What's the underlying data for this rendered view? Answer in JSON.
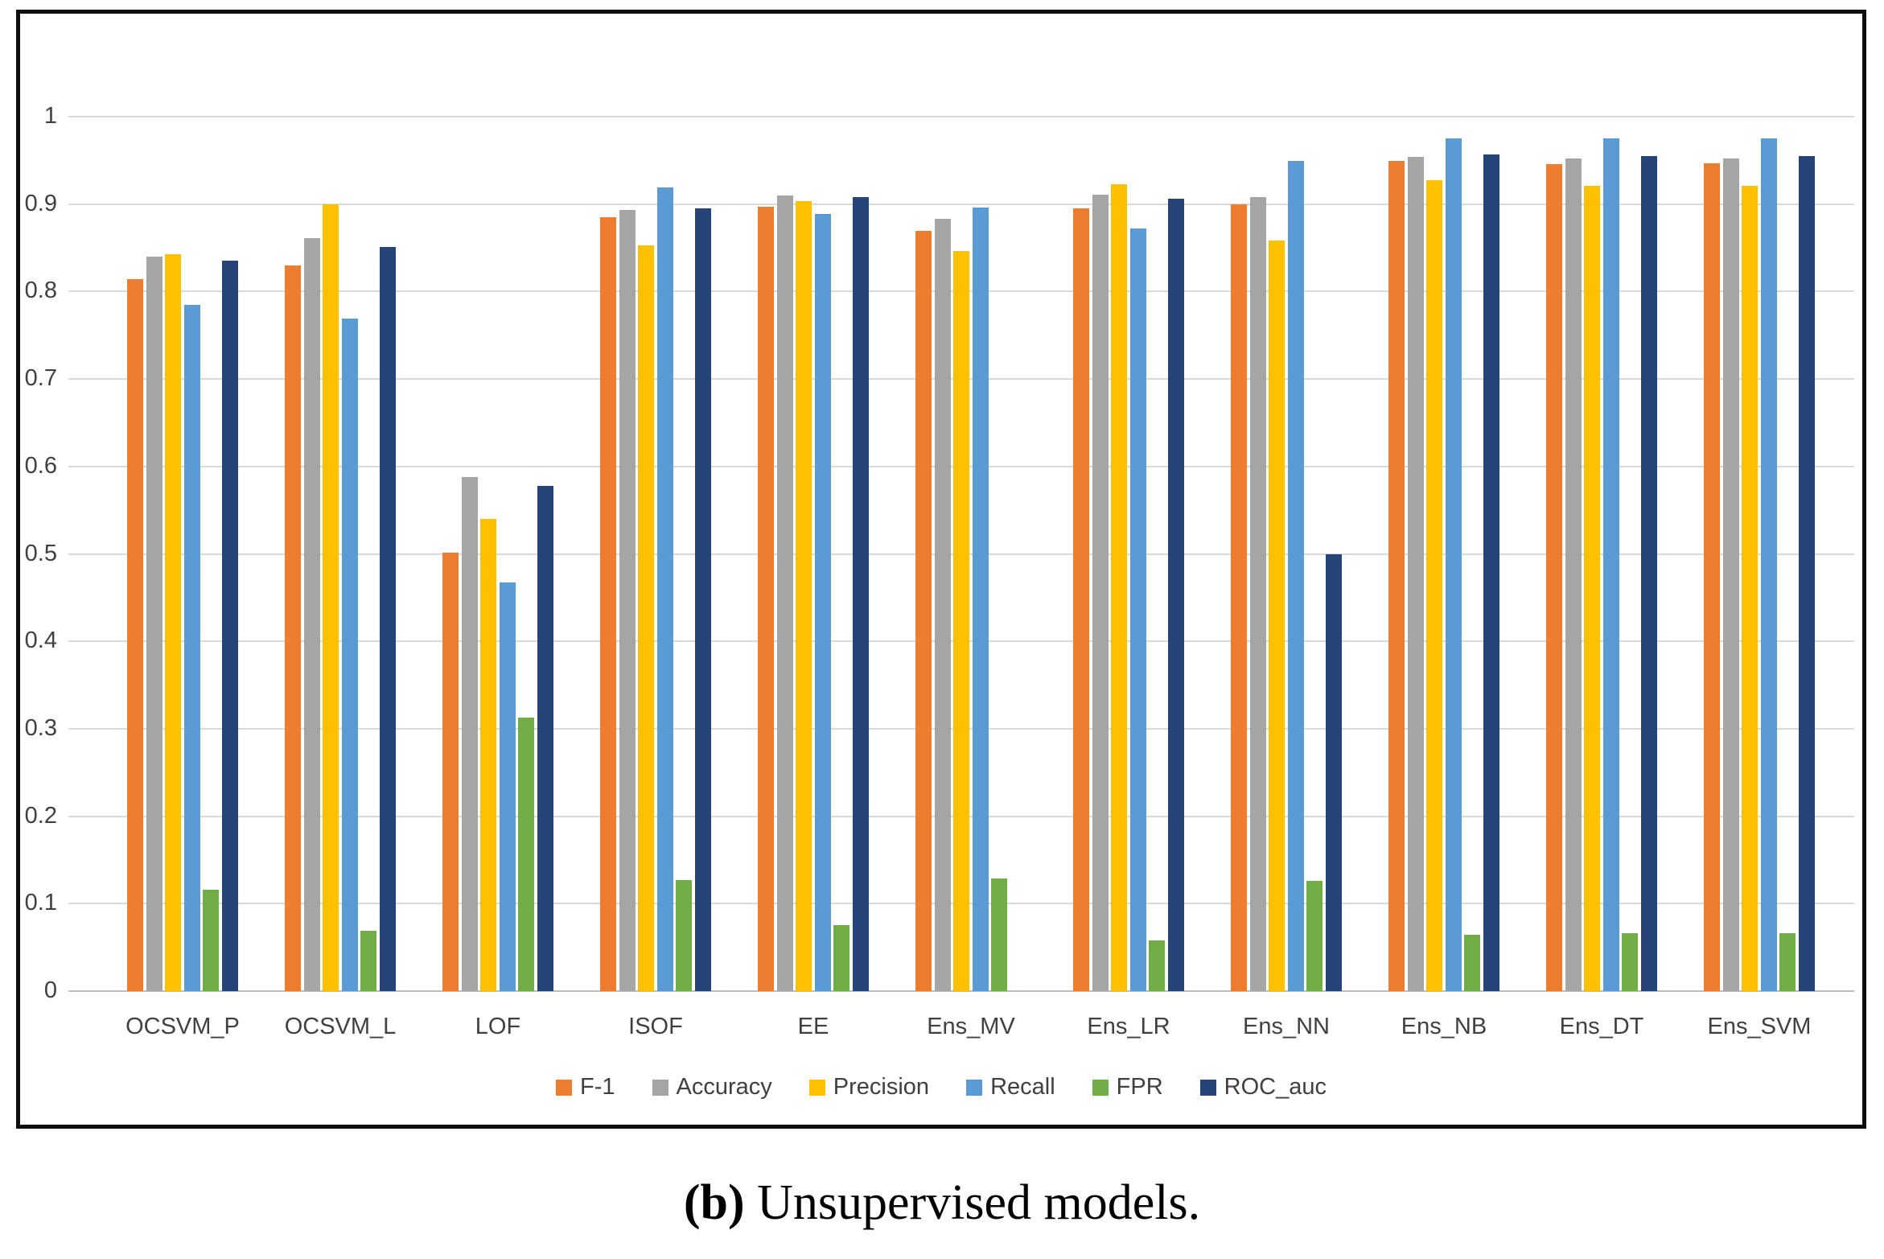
{
  "caption": {
    "marker": "(b)",
    "text": " Unsupervised models."
  },
  "colors": {
    "border": "#0d0d0d",
    "gridline": "#d9d9d9",
    "zero_line": "#bfbfbf",
    "axis_text": "#404040"
  },
  "chart_data": {
    "type": "bar",
    "title": "",
    "xlabel": "",
    "ylabel": "",
    "ylim": [
      0,
      1
    ],
    "ytick_step": 0.1,
    "ytick_labels": [
      "0",
      "0.1",
      "0.2",
      "0.3",
      "0.4",
      "0.5",
      "0.6",
      "0.7",
      "0.8",
      "0.9",
      "1"
    ],
    "grid": true,
    "legend_position": "bottom",
    "categories": [
      "OCSVM_P",
      "OCSVM_L",
      "LOF",
      "ISOF",
      "EE",
      "Ens_MV",
      "Ens_LR",
      "Ens_NN",
      "Ens_NB",
      "Ens_DT",
      "Ens_SVM"
    ],
    "series": [
      {
        "name": "F-1",
        "color": "#ED7D31",
        "values": [
          0.814,
          0.83,
          0.501,
          0.885,
          0.897,
          0.869,
          0.895,
          0.9,
          0.949,
          0.946,
          0.947
        ]
      },
      {
        "name": "Accuracy",
        "color": "#A5A5A5",
        "values": [
          0.84,
          0.861,
          0.588,
          0.893,
          0.91,
          0.883,
          0.911,
          0.908,
          0.954,
          0.952,
          0.952
        ]
      },
      {
        "name": "Precision",
        "color": "#FFC000",
        "values": [
          0.843,
          0.9,
          0.54,
          0.853,
          0.903,
          0.846,
          0.923,
          0.858,
          0.927,
          0.921,
          0.921
        ]
      },
      {
        "name": "Recall",
        "color": "#5B9BD5",
        "values": [
          0.785,
          0.769,
          0.467,
          0.919,
          0.889,
          0.896,
          0.872,
          0.949,
          0.975,
          0.975,
          0.975
        ]
      },
      {
        "name": "FPR",
        "color": "#70AD47",
        "values": [
          0.116,
          0.069,
          0.313,
          0.127,
          0.075,
          0.129,
          0.058,
          0.126,
          0.064,
          0.066,
          0.066
        ]
      },
      {
        "name": "ROC_auc",
        "color": "#264478",
        "values": [
          0.835,
          0.851,
          0.578,
          0.895,
          0.908,
          null,
          0.906,
          0.5,
          0.957,
          0.955,
          0.955
        ]
      }
    ]
  }
}
